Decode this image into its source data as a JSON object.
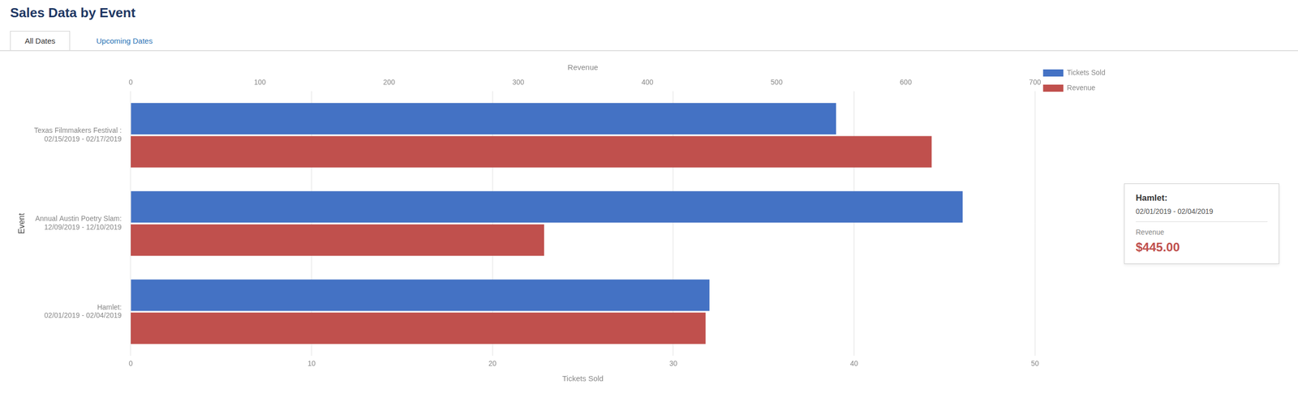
{
  "chart_data": {
    "type": "bar",
    "orientation": "horizontal",
    "title": "Sales Data by Event",
    "tabs": [
      "All Dates",
      "Upcoming Dates"
    ],
    "xlabel": "Event",
    "ylabel": "Tickets Sold",
    "y2label": "Revenue",
    "categories": [
      "Texas Filmmakers Festival :\n02/15/2019 - 02/17/2019",
      "Annual Austin Poetry Slam:\n12/09/2019 - 12/10/2019",
      "Hamlet:\n02/01/2019 - 02/04/2019"
    ],
    "series": [
      {
        "name": "Tickets Sold",
        "color": "#4472C4",
        "values": [
          39,
          46,
          32
        ]
      },
      {
        "name": "Revenue",
        "color": "#C0504D",
        "values": [
          620,
          320,
          445
        ],
        "axis": "y2"
      }
    ],
    "ylim": [
      0,
      50
    ],
    "yticks": [
      0,
      10,
      20,
      30,
      40,
      50
    ],
    "y2lim": [
      0,
      700
    ],
    "y2ticks": [
      0,
      100,
      200,
      300,
      400,
      500,
      600,
      700
    ],
    "grid": true,
    "legend": "right",
    "tooltip": [
      "Hamlet:",
      "02/01/2019 - 02/04/2019",
      "Revenue",
      "$445.00"
    ]
  }
}
